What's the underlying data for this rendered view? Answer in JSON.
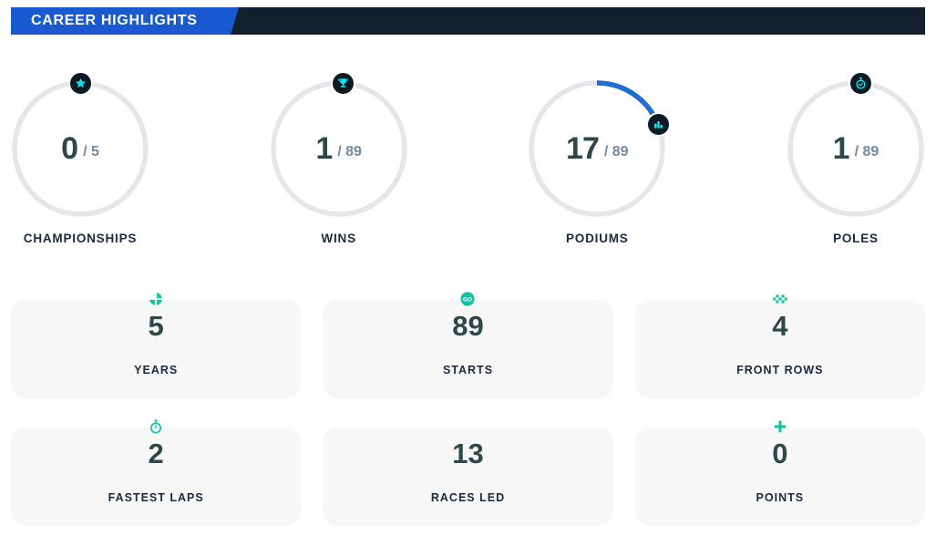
{
  "header": {
    "title": "CAREER HIGHLIGHTS"
  },
  "colors": {
    "header_blue": "#1a5ad1",
    "header_navy": "#15202e",
    "ring_gray": "#e5e6e9",
    "arc_blue": "#1d6ed3",
    "badge_dark": "#0d1a24",
    "icon_cyan": "#1adce8",
    "value_dark": "#2d4848",
    "value_muted": "#7389a4",
    "label_navy": "#1a2a42",
    "card_bg": "#f7f7f8",
    "card_icon_teal": "#10c5a0"
  },
  "gauges": [
    {
      "label": "CHAMPIONSHIPS",
      "value": 0,
      "total": 5,
      "total_display": "/ 5",
      "icon": "star"
    },
    {
      "label": "WINS",
      "value": 1,
      "total": 89,
      "total_display": "/ 89",
      "icon": "trophy"
    },
    {
      "label": "PODIUMS",
      "value": 17,
      "total": 89,
      "total_display": "/ 89",
      "icon": "podium-bars"
    },
    {
      "label": "POLES",
      "value": 1,
      "total": 89,
      "total_display": "/ 89",
      "icon": "stopwatch-check"
    }
  ],
  "stat_cards": [
    {
      "label": "YEARS",
      "value": 5,
      "icon": "pie-segments"
    },
    {
      "label": "STARTS",
      "value": 89,
      "icon": "go-circle",
      "icon_text": "GO"
    },
    {
      "label": "FRONT ROWS",
      "value": 4,
      "icon": "checkered-flag"
    },
    {
      "label": "FASTEST LAPS",
      "value": 2,
      "icon": "stopwatch"
    },
    {
      "label": "RACES LED",
      "value": 13,
      "icon": "none"
    },
    {
      "label": "POINTS",
      "value": 0,
      "icon": "plus"
    }
  ]
}
